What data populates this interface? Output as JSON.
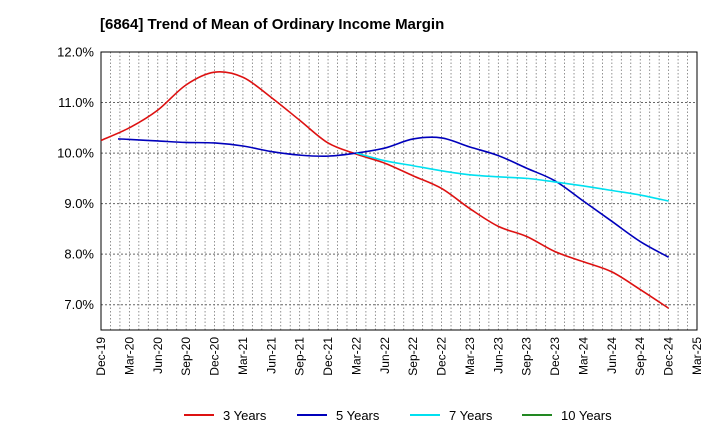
{
  "chart_data": {
    "type": "line",
    "title": "[6864]  Trend of Mean of Ordinary Income Margin",
    "xlabel": "",
    "ylabel": "",
    "ylim": [
      6.5,
      12.0
    ],
    "y_ticks": [
      "7.0%",
      "8.0%",
      "9.0%",
      "10.0%",
      "11.0%",
      "12.0%"
    ],
    "y_tick_values": [
      7.0,
      8.0,
      9.0,
      10.0,
      11.0,
      12.0
    ],
    "x_tick_labels": [
      "Dec-19",
      "Mar-20",
      "Jun-20",
      "Sep-20",
      "Dec-20",
      "Mar-21",
      "Jun-21",
      "Sep-21",
      "Dec-21",
      "Mar-22",
      "Jun-22",
      "Sep-22",
      "Dec-22",
      "Mar-23",
      "Jun-23",
      "Sep-23",
      "Dec-23",
      "Mar-24",
      "Jun-24",
      "Sep-24",
      "Dec-24",
      "Mar-25"
    ],
    "grid": true,
    "legend_position": "bottom",
    "series": [
      {
        "name": "3 Years",
        "color": "#dd1111",
        "points": [
          [
            0,
            10.25
          ],
          [
            1,
            10.5
          ],
          [
            2,
            10.85
          ],
          [
            3,
            11.35
          ],
          [
            4,
            11.6
          ],
          [
            5,
            11.5
          ],
          [
            6,
            11.1
          ],
          [
            7,
            10.65
          ],
          [
            8,
            10.2
          ],
          [
            9,
            9.98
          ],
          [
            10,
            9.8
          ],
          [
            11,
            9.55
          ],
          [
            12,
            9.3
          ],
          [
            13,
            8.9
          ],
          [
            14,
            8.55
          ],
          [
            15,
            8.35
          ],
          [
            16,
            8.05
          ],
          [
            17,
            7.85
          ],
          [
            18,
            7.65
          ],
          [
            19,
            7.3
          ],
          [
            20,
            6.93
          ]
        ]
      },
      {
        "name": "5 Years",
        "color": "#0000bb",
        "points": [
          [
            0.6,
            10.28
          ],
          [
            1,
            10.27
          ],
          [
            2,
            10.24
          ],
          [
            3,
            10.21
          ],
          [
            4,
            10.2
          ],
          [
            5,
            10.14
          ],
          [
            6,
            10.03
          ],
          [
            7,
            9.96
          ],
          [
            8,
            9.94
          ],
          [
            9,
            10.0
          ],
          [
            10,
            10.1
          ],
          [
            11,
            10.28
          ],
          [
            12,
            10.3
          ],
          [
            13,
            10.12
          ],
          [
            14,
            9.95
          ],
          [
            15,
            9.7
          ],
          [
            16,
            9.45
          ],
          [
            17,
            9.05
          ],
          [
            18,
            8.65
          ],
          [
            19,
            8.25
          ],
          [
            20,
            7.94
          ]
        ]
      },
      {
        "name": "7 Years",
        "color": "#00e0f0",
        "points": [
          [
            9,
            10.0
          ],
          [
            10,
            9.85
          ],
          [
            11,
            9.75
          ],
          [
            12,
            9.65
          ],
          [
            13,
            9.57
          ],
          [
            14,
            9.53
          ],
          [
            15,
            9.5
          ],
          [
            16,
            9.43
          ],
          [
            17,
            9.35
          ],
          [
            18,
            9.26
          ],
          [
            19,
            9.17
          ],
          [
            20,
            9.05
          ]
        ]
      },
      {
        "name": "10 Years",
        "color": "#228822",
        "points": []
      }
    ]
  }
}
